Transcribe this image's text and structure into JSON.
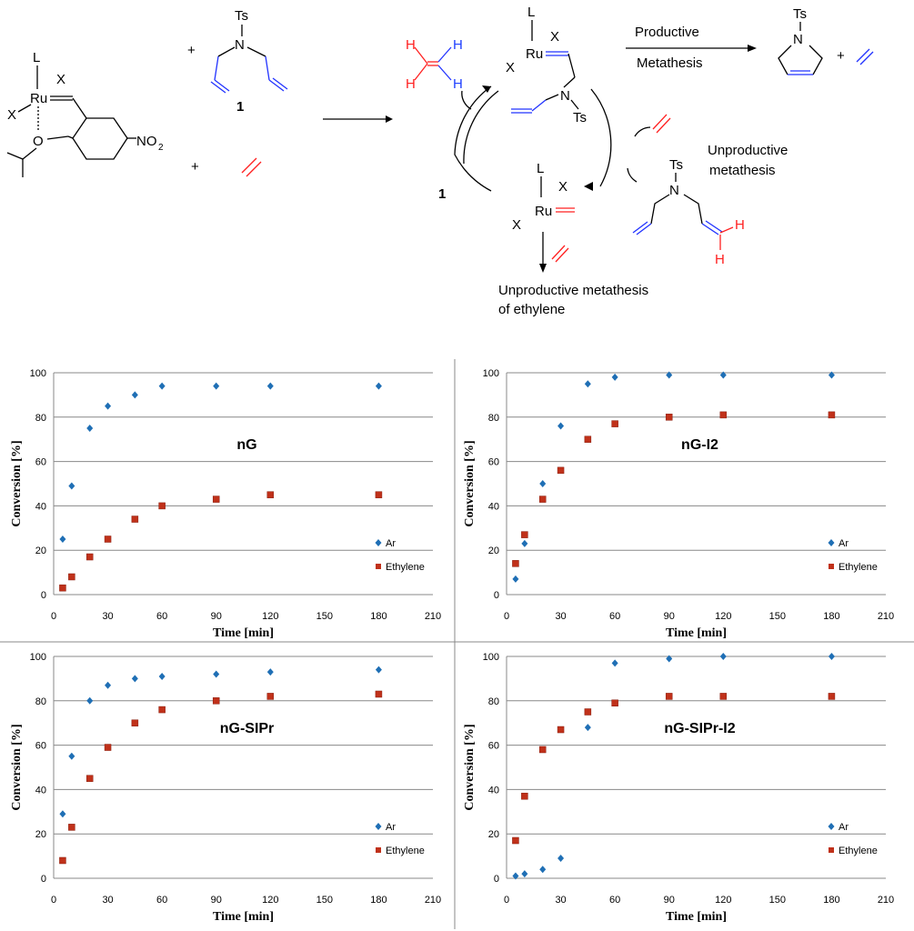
{
  "scheme": {
    "catalyst": {
      "L": "L",
      "X1": "X",
      "X2": "X",
      "Ru": "Ru",
      "O": "O",
      "NO2": "NO",
      "NO2_sub": "2"
    },
    "plus1": "+",
    "plus2": "+",
    "substrate": {
      "Ts": "Ts",
      "N": "N",
      "label": "1"
    },
    "top_complex": {
      "L": "L",
      "X1": "X",
      "X2": "X",
      "Ru": "Ru",
      "N": "N",
      "Ts": "Ts"
    },
    "ethylene_H": [
      "H",
      "H",
      "H",
      "H"
    ],
    "productive_line1": "Productive",
    "productive_line2": "Metathesis",
    "product": {
      "Ts": "Ts",
      "N": "N",
      "plus": "+"
    },
    "unproductive_line1": "Unproductive",
    "unproductive_line2": "metathesis",
    "bottom_complex": {
      "L": "L",
      "X1": "X",
      "X2": "X",
      "Ru": "Ru"
    },
    "cycle_label": "1",
    "side_product": {
      "Ts": "Ts",
      "N": "N",
      "H1": "H",
      "H2": "H"
    },
    "ethylene_line1": "Unproductive metathesis",
    "ethylene_line2": "of ethylene"
  },
  "colors": {
    "ar": "#1f6fb5",
    "ethylene": "#c0311a"
  },
  "chart_data": [
    {
      "type": "scatter",
      "title": "nG",
      "xlabel": "Time [min]",
      "ylabel": "Conversion [%]",
      "xlim": [
        0,
        210
      ],
      "ylim": [
        0,
        100
      ],
      "grid": "horizontal",
      "legend": "bottom-right",
      "x_ticks": [
        "0",
        "30",
        "60",
        "90",
        "120",
        "150",
        "180",
        "210"
      ],
      "y_ticks": [
        "0",
        "20",
        "40",
        "60",
        "80",
        "100"
      ],
      "x": [
        5,
        10,
        20,
        30,
        45,
        60,
        90,
        120,
        180
      ],
      "series": [
        {
          "name": "Ar",
          "marker": "diamond",
          "values": [
            25,
            49,
            75,
            85,
            90,
            94,
            94,
            94,
            94
          ]
        },
        {
          "name": "Ethylene",
          "marker": "square",
          "values": [
            3,
            8,
            17,
            25,
            34,
            40,
            43,
            45,
            45
          ]
        }
      ]
    },
    {
      "type": "scatter",
      "title": "nG-I2",
      "xlabel": "Time [min]",
      "ylabel": "Conversion [%]",
      "xlim": [
        0,
        210
      ],
      "ylim": [
        0,
        100
      ],
      "grid": "horizontal",
      "legend": "bottom-right",
      "x_ticks": [
        "0",
        "30",
        "60",
        "90",
        "120",
        "150",
        "180",
        "210"
      ],
      "y_ticks": [
        "0",
        "20",
        "40",
        "60",
        "80",
        "100"
      ],
      "x": [
        5,
        10,
        20,
        30,
        45,
        60,
        90,
        120,
        180
      ],
      "series": [
        {
          "name": "Ar",
          "marker": "diamond",
          "values": [
            7,
            23,
            50,
            76,
            95,
            98,
            99,
            99,
            99
          ]
        },
        {
          "name": "Ethylene",
          "marker": "square",
          "values": [
            14,
            27,
            43,
            56,
            70,
            77,
            80,
            81,
            81
          ]
        }
      ]
    },
    {
      "type": "scatter",
      "title": "nG-SIPr",
      "xlabel": "Time [min]",
      "ylabel": "Conversion [%]",
      "xlim": [
        0,
        210
      ],
      "ylim": [
        0,
        100
      ],
      "grid": "horizontal",
      "legend": "bottom-right",
      "x_ticks": [
        "0",
        "30",
        "60",
        "90",
        "120",
        "150",
        "180",
        "210"
      ],
      "y_ticks": [
        "0",
        "20",
        "40",
        "60",
        "80",
        "100"
      ],
      "x": [
        5,
        10,
        20,
        30,
        45,
        60,
        90,
        120,
        180
      ],
      "series": [
        {
          "name": "Ar",
          "marker": "diamond",
          "values": [
            29,
            55,
            80,
            87,
            90,
            91,
            92,
            93,
            94
          ]
        },
        {
          "name": "Ethylene",
          "marker": "square",
          "values": [
            8,
            23,
            45,
            59,
            70,
            76,
            80,
            82,
            83
          ]
        }
      ]
    },
    {
      "type": "scatter",
      "title": "nG-SIPr-I2",
      "xlabel": "Time [min]",
      "ylabel": "Conversion [%]",
      "xlim": [
        0,
        210
      ],
      "ylim": [
        0,
        100
      ],
      "grid": "horizontal",
      "legend": "bottom-right",
      "x_ticks": [
        "0",
        "30",
        "60",
        "90",
        "120",
        "150",
        "180",
        "210"
      ],
      "y_ticks": [
        "0",
        "20",
        "40",
        "60",
        "80",
        "100"
      ],
      "x": [
        5,
        10,
        20,
        30,
        45,
        60,
        90,
        120,
        180
      ],
      "series": [
        {
          "name": "Ar",
          "marker": "diamond",
          "values": [
            1,
            2,
            4,
            9,
            68,
            97,
            99,
            100,
            100
          ]
        },
        {
          "name": "Ethylene",
          "marker": "square",
          "values": [
            17,
            37,
            58,
            67,
            75,
            79,
            82,
            82,
            82
          ]
        }
      ]
    }
  ]
}
